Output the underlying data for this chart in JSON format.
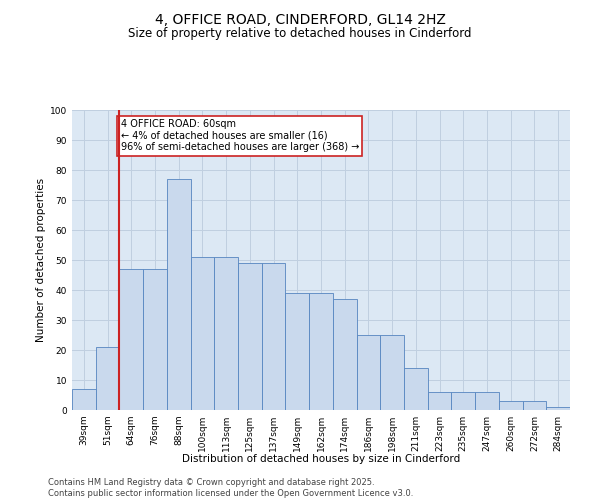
{
  "title": "4, OFFICE ROAD, CINDERFORD, GL14 2HZ",
  "subtitle": "Size of property relative to detached houses in Cinderford",
  "xlabel": "Distribution of detached houses by size in Cinderford",
  "ylabel": "Number of detached properties",
  "categories": [
    "39sqm",
    "51sqm",
    "64sqm",
    "76sqm",
    "88sqm",
    "100sqm",
    "113sqm",
    "125sqm",
    "137sqm",
    "149sqm",
    "162sqm",
    "174sqm",
    "186sqm",
    "198sqm",
    "211sqm",
    "223sqm",
    "235sqm",
    "247sqm",
    "260sqm",
    "272sqm",
    "284sqm"
  ],
  "values": [
    7,
    21,
    47,
    47,
    77,
    51,
    51,
    49,
    49,
    39,
    39,
    37,
    25,
    25,
    14,
    6,
    6,
    6,
    3,
    3,
    1
  ],
  "bar_color": "#c9d9ed",
  "bar_edge_color": "#5585c0",
  "vline_color": "#cc2222",
  "annotation_text": "4 OFFICE ROAD: 60sqm\n← 4% of detached houses are smaller (16)\n96% of semi-detached houses are larger (368) →",
  "annotation_box_facecolor": "#ffffff",
  "annotation_box_edgecolor": "#cc2222",
  "ylim": [
    0,
    100
  ],
  "yticks": [
    0,
    10,
    20,
    30,
    40,
    50,
    60,
    70,
    80,
    90,
    100
  ],
  "grid_color": "#c0cfe0",
  "bg_color": "#dce8f4",
  "footer": "Contains HM Land Registry data © Crown copyright and database right 2025.\nContains public sector information licensed under the Open Government Licence v3.0.",
  "title_fontsize": 10,
  "subtitle_fontsize": 8.5,
  "axis_label_fontsize": 7.5,
  "tick_fontsize": 6.5,
  "footer_fontsize": 6,
  "annotation_fontsize": 7
}
